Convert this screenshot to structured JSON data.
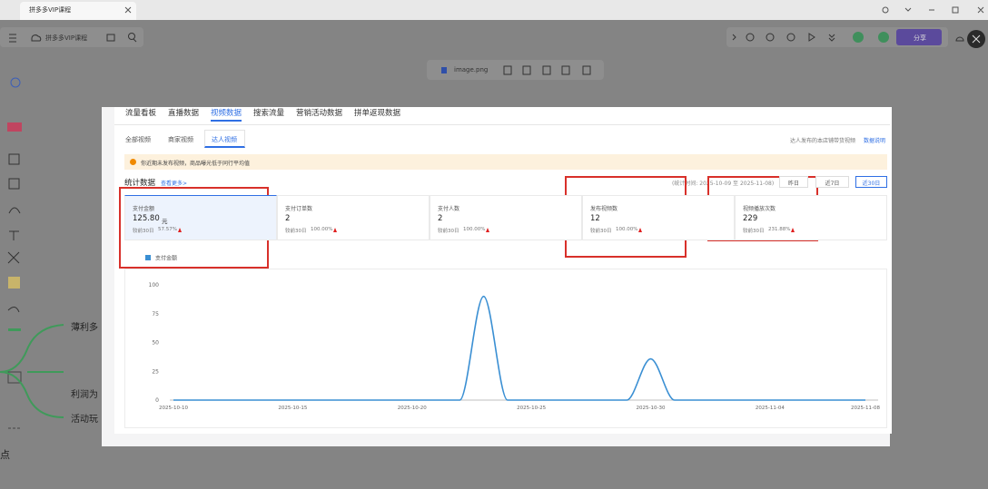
{
  "browser": {
    "tab_title": "拼多多VIP课程"
  },
  "toolbar": {
    "doc_title": "拼多多VIP课程",
    "share_button": "分享"
  },
  "viewer": {
    "file_name": "image.png"
  },
  "mindmap": {
    "nodes": [
      "薄利多",
      "利润为",
      "活动玩"
    ],
    "fragment": "点"
  },
  "report": {
    "tabs": [
      "流量看板",
      "直播数据",
      "视频数据",
      "搜索流量",
      "营销活动数据",
      "拼单返现数据"
    ],
    "sub_tabs": [
      "全部视频",
      "商家视频",
      "达人视频"
    ],
    "sub_tab_note": "达人发布的本店铺带货视频",
    "help_link": "数据说明",
    "notice": "你近期未发布视频，商品曝光低于同行平均值",
    "section_title": "统计数据",
    "more_link": "查看更多>",
    "stat_period": "(统计时间: 2025-10-09 至 2025-11-08)",
    "range_buttons": [
      "昨日",
      "近7日",
      "近30日"
    ],
    "metrics": [
      {
        "label": "支付金额",
        "value": "125.80",
        "unit": "元",
        "compare": "较前30日",
        "change": "57.57%"
      },
      {
        "label": "支付订单数",
        "value": "2",
        "compare": "较前30日",
        "change": "100.00%"
      },
      {
        "label": "支付人数",
        "value": "2",
        "compare": "较前30日",
        "change": "100.00%"
      },
      {
        "label": "发布视频数",
        "value": "12",
        "compare": "较前30日",
        "change": "100.00%"
      },
      {
        "label": "视频播放次数",
        "value": "229",
        "compare": "较前30日",
        "change": "231.88%"
      }
    ]
  },
  "chart_data": {
    "type": "line",
    "categories": [
      "2025-10-10",
      null,
      null,
      null,
      null,
      "2025-10-15",
      null,
      null,
      null,
      null,
      "2025-10-20",
      null,
      null,
      null,
      null,
      "2025-10-25",
      null,
      null,
      null,
      null,
      "2025-10-30",
      null,
      null,
      null,
      null,
      "2025-11-04",
      null,
      null,
      null,
      "2025-11-08"
    ],
    "series": [
      {
        "name": "支付金额",
        "color": "#3a8fd3",
        "values": [
          0,
          0,
          0,
          0,
          0,
          0,
          0,
          0,
          0,
          0,
          0,
          0,
          0,
          90,
          0,
          0,
          0,
          0,
          0,
          0,
          35.8,
          0,
          0,
          0,
          0,
          0,
          0,
          0,
          0,
          0
        ]
      }
    ],
    "ylim": [
      0,
      100
    ],
    "yticks": [
      0,
      25,
      50,
      75,
      100
    ],
    "grid": false
  }
}
